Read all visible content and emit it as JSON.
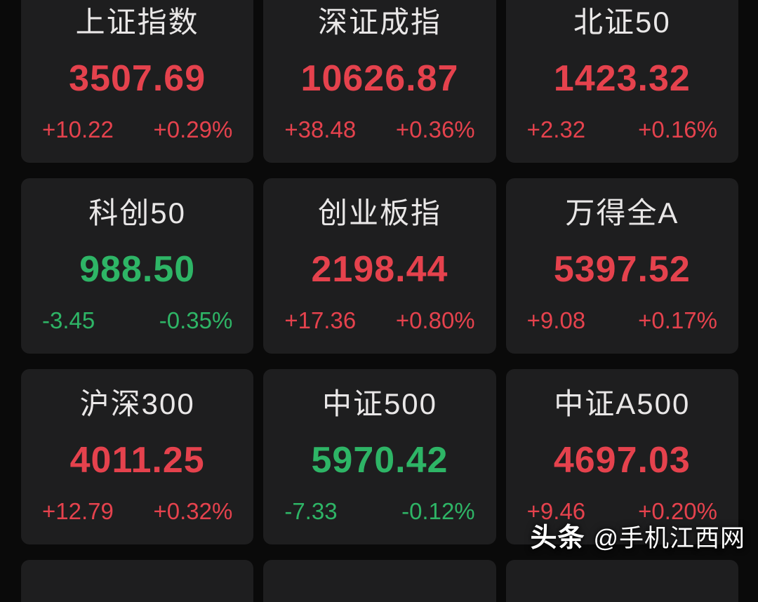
{
  "page": {
    "background": "#0a0a0a",
    "card_background": "#1e1e1f"
  },
  "colors": {
    "up": "#e5424d",
    "down": "#2eb566",
    "title": "#e9e7e7"
  },
  "indices": [
    {
      "name": "上证指数",
      "value": "3507.69",
      "change": "+10.22",
      "change_pct": "+0.29%",
      "direction": "up"
    },
    {
      "name": "深证成指",
      "value": "10626.87",
      "change": "+38.48",
      "change_pct": "+0.36%",
      "direction": "up"
    },
    {
      "name": "北证50",
      "value": "1423.32",
      "change": "+2.32",
      "change_pct": "+0.16%",
      "direction": "up"
    },
    {
      "name": "科创50",
      "value": "988.50",
      "change": "-3.45",
      "change_pct": "-0.35%",
      "direction": "down"
    },
    {
      "name": "创业板指",
      "value": "2198.44",
      "change": "+17.36",
      "change_pct": "+0.80%",
      "direction": "up"
    },
    {
      "name": "万得全A",
      "value": "5397.52",
      "change": "+9.08",
      "change_pct": "+0.17%",
      "direction": "up"
    },
    {
      "name": "沪深300",
      "value": "4011.25",
      "change": "+12.79",
      "change_pct": "+0.32%",
      "direction": "up"
    },
    {
      "name": "中证500",
      "value": "5970.42",
      "change": "-7.33",
      "change_pct": "-0.12%",
      "direction": "down"
    },
    {
      "name": "中证A500",
      "value": "4697.03",
      "change": "+9.46",
      "change_pct": "+0.20%",
      "direction": "up"
    }
  ],
  "watermark": {
    "brand": "头条",
    "handle": "@手机江西网"
  }
}
